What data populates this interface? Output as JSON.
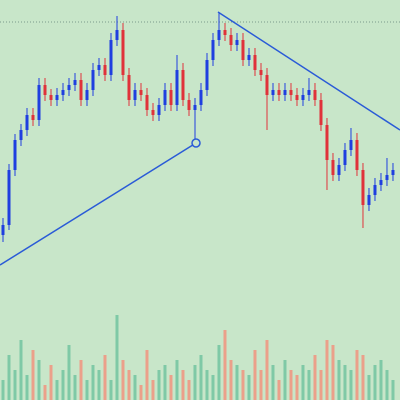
{
  "chart_data": {
    "type": "candlestick",
    "background": "#c8e6c9",
    "up_color": "#1f3fe0",
    "down_color": "#e0323a",
    "volume_up_color": "#7fc9a6",
    "volume_down_color": "#eba08a",
    "line_color": "#2a5bd7",
    "hline_color": "#7a9a8a",
    "xlim": [
      -0.5,
      66.17
    ],
    "ylim": [
      0,
      400
    ],
    "volume_ylim": [
      0,
      400
    ],
    "open": [
      165,
      175,
      230,
      260,
      270,
      285,
      280,
      315,
      305,
      300,
      305,
      310,
      315,
      320,
      300,
      310,
      330,
      335,
      325,
      360,
      370,
      325,
      300,
      310,
      305,
      290,
      285,
      295,
      310,
      295,
      330,
      300,
      290,
      295,
      310,
      340,
      360,
      370,
      365,
      355,
      360,
      340,
      345,
      330,
      325,
      305,
      310,
      305,
      310,
      305,
      300,
      305,
      310,
      300,
      275,
      240,
      225,
      235,
      250,
      260,
      230,
      195,
      205,
      215,
      220,
      225
    ],
    "high": [
      182,
      236,
      266,
      276,
      292,
      292,
      322,
      322,
      311,
      312,
      317,
      322,
      327,
      327,
      317,
      337,
      342,
      342,
      367,
      384,
      377,
      332,
      317,
      317,
      312,
      297,
      302,
      317,
      317,
      345,
      337,
      307,
      302,
      317,
      347,
      367,
      388,
      377,
      372,
      367,
      367,
      352,
      352,
      337,
      332,
      317,
      317,
      317,
      317,
      312,
      312,
      322,
      317,
      307,
      282,
      247,
      242,
      257,
      272,
      267,
      237,
      212,
      222,
      227,
      242,
      237
    ],
    "low": [
      158,
      170,
      224,
      254,
      264,
      274,
      274,
      299,
      294,
      294,
      299,
      304,
      309,
      294,
      294,
      304,
      324,
      319,
      319,
      354,
      319,
      294,
      294,
      299,
      284,
      279,
      279,
      289,
      289,
      289,
      294,
      284,
      257,
      289,
      304,
      334,
      354,
      359,
      349,
      349,
      334,
      334,
      324,
      319,
      270,
      299,
      299,
      299,
      299,
      294,
      294,
      299,
      294,
      269,
      210,
      219,
      219,
      229,
      244,
      224,
      172,
      189,
      199,
      209,
      214,
      219
    ],
    "close": [
      175,
      230,
      260,
      270,
      285,
      280,
      315,
      305,
      300,
      305,
      310,
      315,
      320,
      300,
      310,
      330,
      335,
      325,
      360,
      370,
      325,
      300,
      310,
      305,
      290,
      285,
      295,
      310,
      295,
      330,
      300,
      290,
      295,
      310,
      340,
      360,
      370,
      365,
      355,
      360,
      340,
      345,
      330,
      325,
      305,
      310,
      305,
      310,
      305,
      300,
      305,
      310,
      300,
      275,
      240,
      225,
      235,
      250,
      260,
      230,
      195,
      205,
      215,
      220,
      225,
      230
    ],
    "volume": [
      20,
      45,
      30,
      60,
      25,
      50,
      40,
      15,
      35,
      20,
      30,
      55,
      25,
      40,
      20,
      35,
      30,
      45,
      20,
      85,
      40,
      30,
      25,
      15,
      50,
      20,
      30,
      35,
      25,
      40,
      30,
      20,
      35,
      45,
      30,
      25,
      55,
      70,
      40,
      35,
      30,
      25,
      50,
      30,
      60,
      35,
      20,
      40,
      30,
      25,
      35,
      30,
      45,
      30,
      60,
      55,
      40,
      35,
      30,
      50,
      45,
      25,
      35,
      40,
      30,
      20
    ],
    "hline": 378,
    "trend_lines": [
      {
        "x": [
          -0.5,
          32.17
        ],
        "y": [
          135,
          257
        ]
      },
      {
        "x": [
          35.83,
          66.17
        ],
        "y": [
          388,
          270
        ]
      }
    ]
  }
}
